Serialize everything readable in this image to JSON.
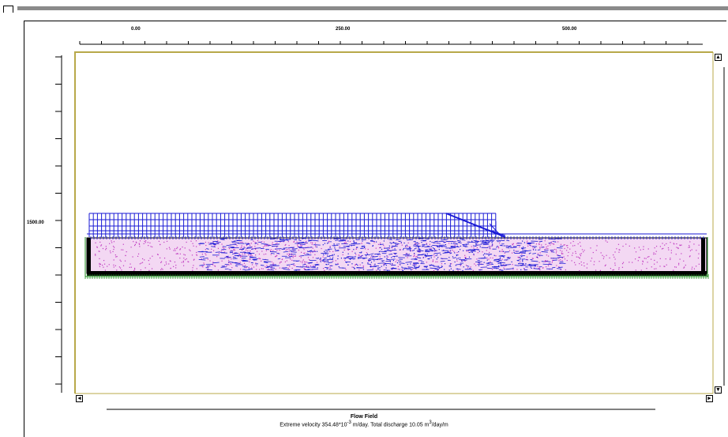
{
  "x_axis": {
    "ticks": [
      "0.00",
      "250.00",
      "500.00"
    ]
  },
  "y_axis": {
    "ticks": [
      "1500.00"
    ]
  },
  "caption": {
    "title": "Flow Field",
    "velocity_prefix": "Extreme velocity 354.48*10",
    "velocity_exp": "-3",
    "velocity_units": " m/day. Total discharge 10.05 m",
    "discharge_exp": "3",
    "discharge_units": "/day/m"
  },
  "colors": {
    "soil_fill": "#f3d8f3",
    "flow_vectors": "#1a1ad6",
    "mesh_boundary": "#1c8a1c",
    "frame": "#b8a84a",
    "dots": "#c03cc0"
  },
  "scroll": {
    "up": "▲",
    "down": "▼",
    "left": "◄",
    "right": "►"
  }
}
